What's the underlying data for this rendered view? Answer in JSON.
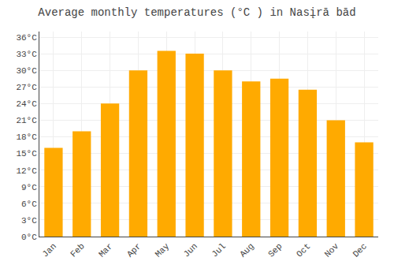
{
  "chart_data": {
    "type": "bar",
    "title": "Average monthly temperatures (°C ) in Nasįrā bād",
    "categories": [
      "Jan",
      "Feb",
      "Mar",
      "Apr",
      "May",
      "Jun",
      "Jul",
      "Aug",
      "Sep",
      "Oct",
      "Nov",
      "Dec"
    ],
    "values": [
      16,
      19,
      24,
      30,
      33.5,
      33,
      30,
      28,
      28.5,
      26.5,
      21,
      17
    ],
    "color": "#FFAA00",
    "ylim": [
      0,
      37
    ],
    "yticks": [
      {
        "value": 0,
        "label": "0°C"
      },
      {
        "value": 3,
        "label": "3°C"
      },
      {
        "value": 6,
        "label": "6°C"
      },
      {
        "value": 9,
        "label": "9°C"
      },
      {
        "value": 12,
        "label": "12°C"
      },
      {
        "value": 15,
        "label": "15°C"
      },
      {
        "value": 18,
        "label": "18°C"
      },
      {
        "value": 21,
        "label": "21°C"
      },
      {
        "value": 24,
        "label": "24°C"
      },
      {
        "value": 27,
        "label": "27°C"
      },
      {
        "value": 30,
        "label": "30°C"
      },
      {
        "value": 33,
        "label": "33°C"
      },
      {
        "value": 36,
        "label": "36°C"
      }
    ],
    "grid": true
  }
}
